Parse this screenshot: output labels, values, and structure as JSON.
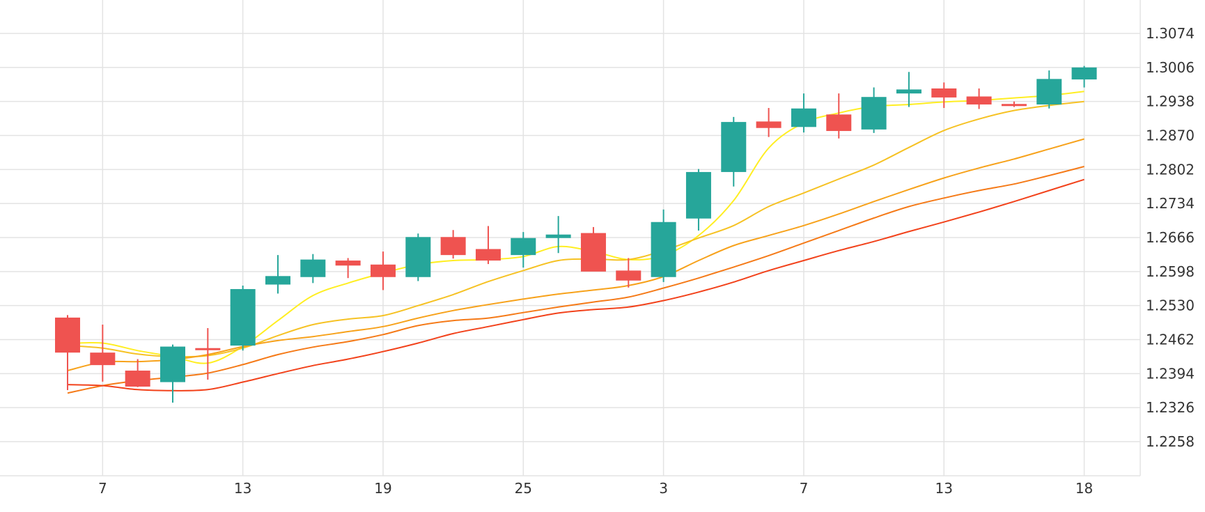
{
  "chart_data": {
    "type": "candlestick",
    "title": "",
    "xlabel": "",
    "ylabel": "",
    "grid": true,
    "y_axis_side": "right",
    "ylim": [
      1.219,
      1.3142
    ],
    "y_ticks": [
      "1.2258",
      "1.2326",
      "1.2394",
      "1.2462",
      "1.2530",
      "1.2598",
      "1.2666",
      "1.2734",
      "1.2802",
      "1.2870",
      "1.2938",
      "1.3006",
      "1.3074"
    ],
    "x_ticks": [
      {
        "label": "7",
        "index": 1
      },
      {
        "label": "13",
        "index": 5
      },
      {
        "label": "19",
        "index": 9
      },
      {
        "label": "25",
        "index": 13
      },
      {
        "label": "3",
        "index": 17
      },
      {
        "label": "7",
        "index": 21
      },
      {
        "label": "13",
        "index": 25
      },
      {
        "label": "18",
        "index": 29
      }
    ],
    "candles": [
      {
        "open": 1.2506,
        "high": 1.2511,
        "low": 1.2361,
        "close": 1.2436
      },
      {
        "open": 1.2436,
        "high": 1.2492,
        "low": 1.2378,
        "close": 1.2411
      },
      {
        "open": 1.24,
        "high": 1.2423,
        "low": 1.2367,
        "close": 1.2368
      },
      {
        "open": 1.2377,
        "high": 1.2452,
        "low": 1.2336,
        "close": 1.2448
      },
      {
        "open": 1.2445,
        "high": 1.2485,
        "low": 1.2382,
        "close": 1.2442
      },
      {
        "open": 1.245,
        "high": 1.257,
        "low": 1.244,
        "close": 1.2563
      },
      {
        "open": 1.2572,
        "high": 1.2631,
        "low": 1.2554,
        "close": 1.2589
      },
      {
        "open": 1.2587,
        "high": 1.2633,
        "low": 1.2575,
        "close": 1.2622
      },
      {
        "open": 1.262,
        "high": 1.2625,
        "low": 1.2585,
        "close": 1.261
      },
      {
        "open": 1.2612,
        "high": 1.2638,
        "low": 1.2561,
        "close": 1.2587
      },
      {
        "open": 1.2587,
        "high": 1.2674,
        "low": 1.2579,
        "close": 1.2667
      },
      {
        "open": 1.2667,
        "high": 1.2681,
        "low": 1.2624,
        "close": 1.2631
      },
      {
        "open": 1.2643,
        "high": 1.2689,
        "low": 1.2613,
        "close": 1.262
      },
      {
        "open": 1.2631,
        "high": 1.2677,
        "low": 1.2606,
        "close": 1.2665
      },
      {
        "open": 1.2665,
        "high": 1.2709,
        "low": 1.2635,
        "close": 1.2672
      },
      {
        "open": 1.2675,
        "high": 1.2687,
        "low": 1.2601,
        "close": 1.2598
      },
      {
        "open": 1.26,
        "high": 1.2625,
        "low": 1.2566,
        "close": 1.258
      },
      {
        "open": 1.2587,
        "high": 1.2722,
        "low": 1.2577,
        "close": 1.2697
      },
      {
        "open": 1.2704,
        "high": 1.2803,
        "low": 1.268,
        "close": 1.2797
      },
      {
        "open": 1.2797,
        "high": 1.2907,
        "low": 1.2768,
        "close": 1.2897
      },
      {
        "open": 1.2898,
        "high": 1.2925,
        "low": 1.2867,
        "close": 1.2885
      },
      {
        "open": 1.2887,
        "high": 1.2954,
        "low": 1.2876,
        "close": 1.2924
      },
      {
        "open": 1.2912,
        "high": 1.2954,
        "low": 1.2864,
        "close": 1.2879
      },
      {
        "open": 1.2882,
        "high": 1.2966,
        "low": 1.2875,
        "close": 1.2947
      },
      {
        "open": 1.2954,
        "high": 1.2997,
        "low": 1.2927,
        "close": 1.2962
      },
      {
        "open": 1.2964,
        "high": 1.2976,
        "low": 1.2925,
        "close": 1.2946
      },
      {
        "open": 1.2948,
        "high": 1.2964,
        "low": 1.2923,
        "close": 1.2932
      },
      {
        "open": 1.2933,
        "high": 1.2938,
        "low": 1.2927,
        "close": 1.2932
      },
      {
        "open": 1.2932,
        "high": 1.3,
        "low": 1.2924,
        "close": 1.2983
      },
      {
        "open": 1.2982,
        "high": 1.3009,
        "low": 1.2966,
        "close": 1.3006
      }
    ],
    "moving_averages": [
      {
        "color": "#ffee22",
        "values": [
          1.2454,
          1.2455,
          1.244,
          1.2428,
          1.2415,
          1.2448,
          1.25,
          1.255,
          1.2575,
          1.2595,
          1.2612,
          1.262,
          1.2622,
          1.2628,
          1.2648,
          1.2638,
          1.2622,
          1.263,
          1.267,
          1.274,
          1.2845,
          1.2895,
          1.2915,
          1.2928,
          1.2932,
          1.2937,
          1.294,
          1.2945,
          1.295,
          1.2958
        ]
      },
      {
        "color": "#f6c224",
        "values": [
          1.245,
          1.2445,
          1.2433,
          1.2428,
          1.243,
          1.2445,
          1.247,
          1.2492,
          1.2503,
          1.251,
          1.253,
          1.2552,
          1.2578,
          1.26,
          1.262,
          1.2623,
          1.2622,
          1.264,
          1.2665,
          1.269,
          1.2728,
          1.2755,
          1.2783,
          1.2811,
          1.2846,
          1.288,
          1.2903,
          1.292,
          1.293,
          1.2938
        ]
      },
      {
        "color": "#f7a21b",
        "values": [
          1.24,
          1.2417,
          1.2418,
          1.2422,
          1.2432,
          1.2448,
          1.246,
          1.2468,
          1.2478,
          1.2488,
          1.2505,
          1.252,
          1.2532,
          1.2543,
          1.2553,
          1.2561,
          1.257,
          1.2588,
          1.262,
          1.265,
          1.267,
          1.269,
          1.2713,
          1.2738,
          1.2762,
          1.2785,
          1.2805,
          1.2823,
          1.2843,
          1.2863
        ]
      },
      {
        "color": "#f57a18",
        "values": [
          1.2355,
          1.237,
          1.238,
          1.2387,
          1.2395,
          1.2412,
          1.2432,
          1.2447,
          1.2458,
          1.2472,
          1.249,
          1.25,
          1.2505,
          1.2516,
          1.2527,
          1.2537,
          1.2547,
          1.2565,
          1.2585,
          1.2607,
          1.263,
          1.2655,
          1.268,
          1.2705,
          1.2728,
          1.2745,
          1.276,
          1.2773,
          1.279,
          1.2808
        ]
      },
      {
        "color": "#f2421b",
        "values": [
          1.2372,
          1.237,
          1.2362,
          1.236,
          1.2362,
          1.2377,
          1.2394,
          1.241,
          1.2423,
          1.2438,
          1.2455,
          1.2474,
          1.2488,
          1.2502,
          1.2515,
          1.2522,
          1.2527,
          1.254,
          1.2557,
          1.2577,
          1.26,
          1.262,
          1.264,
          1.2658,
          1.2678,
          1.2697,
          1.2717,
          1.2738,
          1.276,
          1.2782
        ]
      }
    ],
    "up_color": "#26a69a",
    "down_color": "#ef5350",
    "grid_color": "#e3e3e3"
  }
}
